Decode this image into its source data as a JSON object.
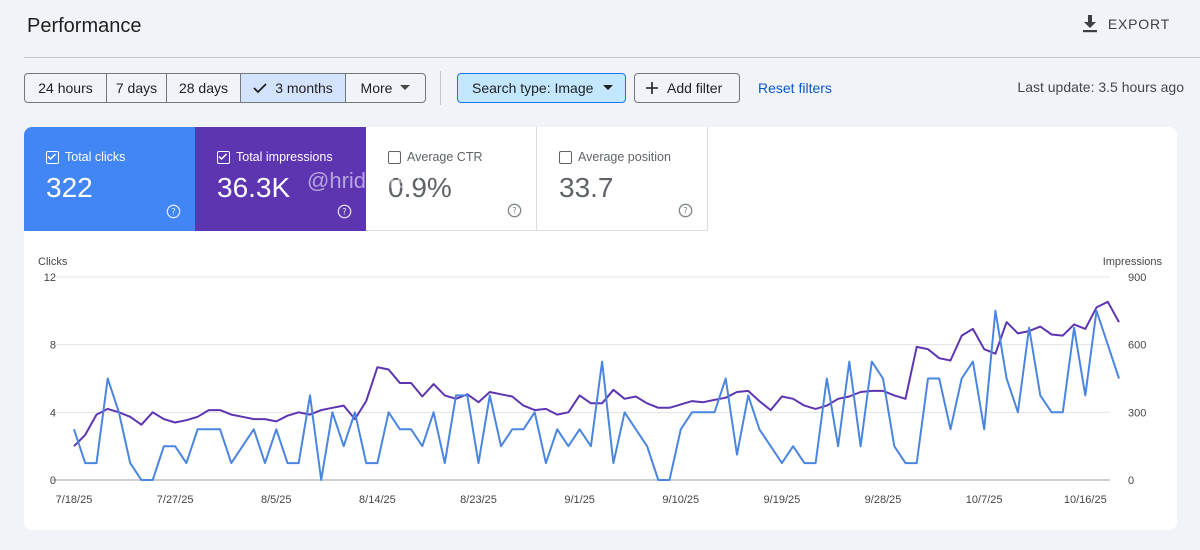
{
  "header": {
    "title": "Performance",
    "export_label": "EXPORT"
  },
  "filters": {
    "ranges": [
      "24 hours",
      "7 days",
      "28 days",
      "3 months",
      "More"
    ],
    "active_index": 3,
    "search_type": "Search type: Image",
    "add_filter": "Add filter",
    "reset": "Reset filters",
    "last_update": "Last update: 3.5 hours ago"
  },
  "metrics": [
    {
      "label": "Total clicks",
      "value": "322",
      "checked": true
    },
    {
      "label": "Total impressions",
      "value": "36.3K",
      "checked": true
    },
    {
      "label": "Average CTR",
      "value": "0.9%",
      "checked": false
    },
    {
      "label": "Average position",
      "value": "33.7",
      "checked": false
    }
  ],
  "watermark": "@hridoyreh",
  "colors": {
    "clicks": "#4a86e0",
    "impressions": "#5e35b1",
    "accent": "#0b57d0"
  },
  "chart_data": {
    "type": "line",
    "y_left_label": "Clicks",
    "y_right_label": "Impressions",
    "y_left_ticks": [
      "12",
      "8",
      "4",
      "0"
    ],
    "y_right_ticks": [
      "900",
      "600",
      "300",
      "0"
    ],
    "y_left_range": [
      0,
      12
    ],
    "y_right_range": [
      0,
      900
    ],
    "x_tick_labels": [
      "7/18/25",
      "7/27/25",
      "8/5/25",
      "8/14/25",
      "8/23/25",
      "9/1/25",
      "9/10/25",
      "9/19/25",
      "9/28/25",
      "10/7/25",
      "10/16/25"
    ],
    "x_tick_days": [
      0,
      9,
      18,
      27,
      36,
      45,
      54,
      63,
      72,
      81,
      90
    ],
    "series": [
      {
        "name": "Clicks",
        "axis": "left",
        "values": [
          3,
          1,
          1,
          6,
          4,
          1,
          0,
          0,
          2,
          2,
          1,
          3,
          3,
          3,
          1,
          2,
          3,
          1,
          3,
          1,
          1,
          5,
          0,
          4,
          2,
          4,
          1,
          1,
          4,
          3,
          3,
          2,
          4,
          1,
          5,
          5,
          1,
          5,
          2,
          3,
          3,
          4,
          1,
          3,
          2,
          3,
          2,
          7,
          1,
          4,
          3,
          2,
          0,
          0,
          3,
          4,
          4,
          4,
          6,
          1.5,
          5,
          3,
          2,
          1,
          2,
          1,
          1,
          6,
          2,
          7,
          2,
          7,
          6,
          2,
          1,
          1,
          6,
          6,
          3,
          6,
          7,
          3,
          10,
          6,
          4,
          9,
          5,
          4,
          4,
          9,
          5,
          10,
          8,
          6
        ]
      },
      {
        "name": "Impressions",
        "axis": "right",
        "values": [
          150,
          200,
          290,
          315,
          300,
          280,
          245,
          300,
          270,
          255,
          265,
          280,
          310,
          310,
          290,
          280,
          270,
          270,
          260,
          285,
          300,
          290,
          310,
          320,
          330,
          270,
          350,
          500,
          490,
          430,
          430,
          370,
          425,
          375,
          360,
          380,
          345,
          390,
          380,
          370,
          330,
          310,
          315,
          290,
          300,
          375,
          340,
          340,
          400,
          360,
          370,
          340,
          320,
          320,
          335,
          350,
          345,
          355,
          365,
          390,
          395,
          350,
          310,
          370,
          360,
          330,
          315,
          330,
          360,
          370,
          390,
          395,
          395,
          375,
          360,
          590,
          580,
          540,
          530,
          640,
          670,
          580,
          560,
          700,
          650,
          660,
          680,
          645,
          640,
          690,
          670,
          765,
          790,
          700
        ]
      }
    ]
  }
}
